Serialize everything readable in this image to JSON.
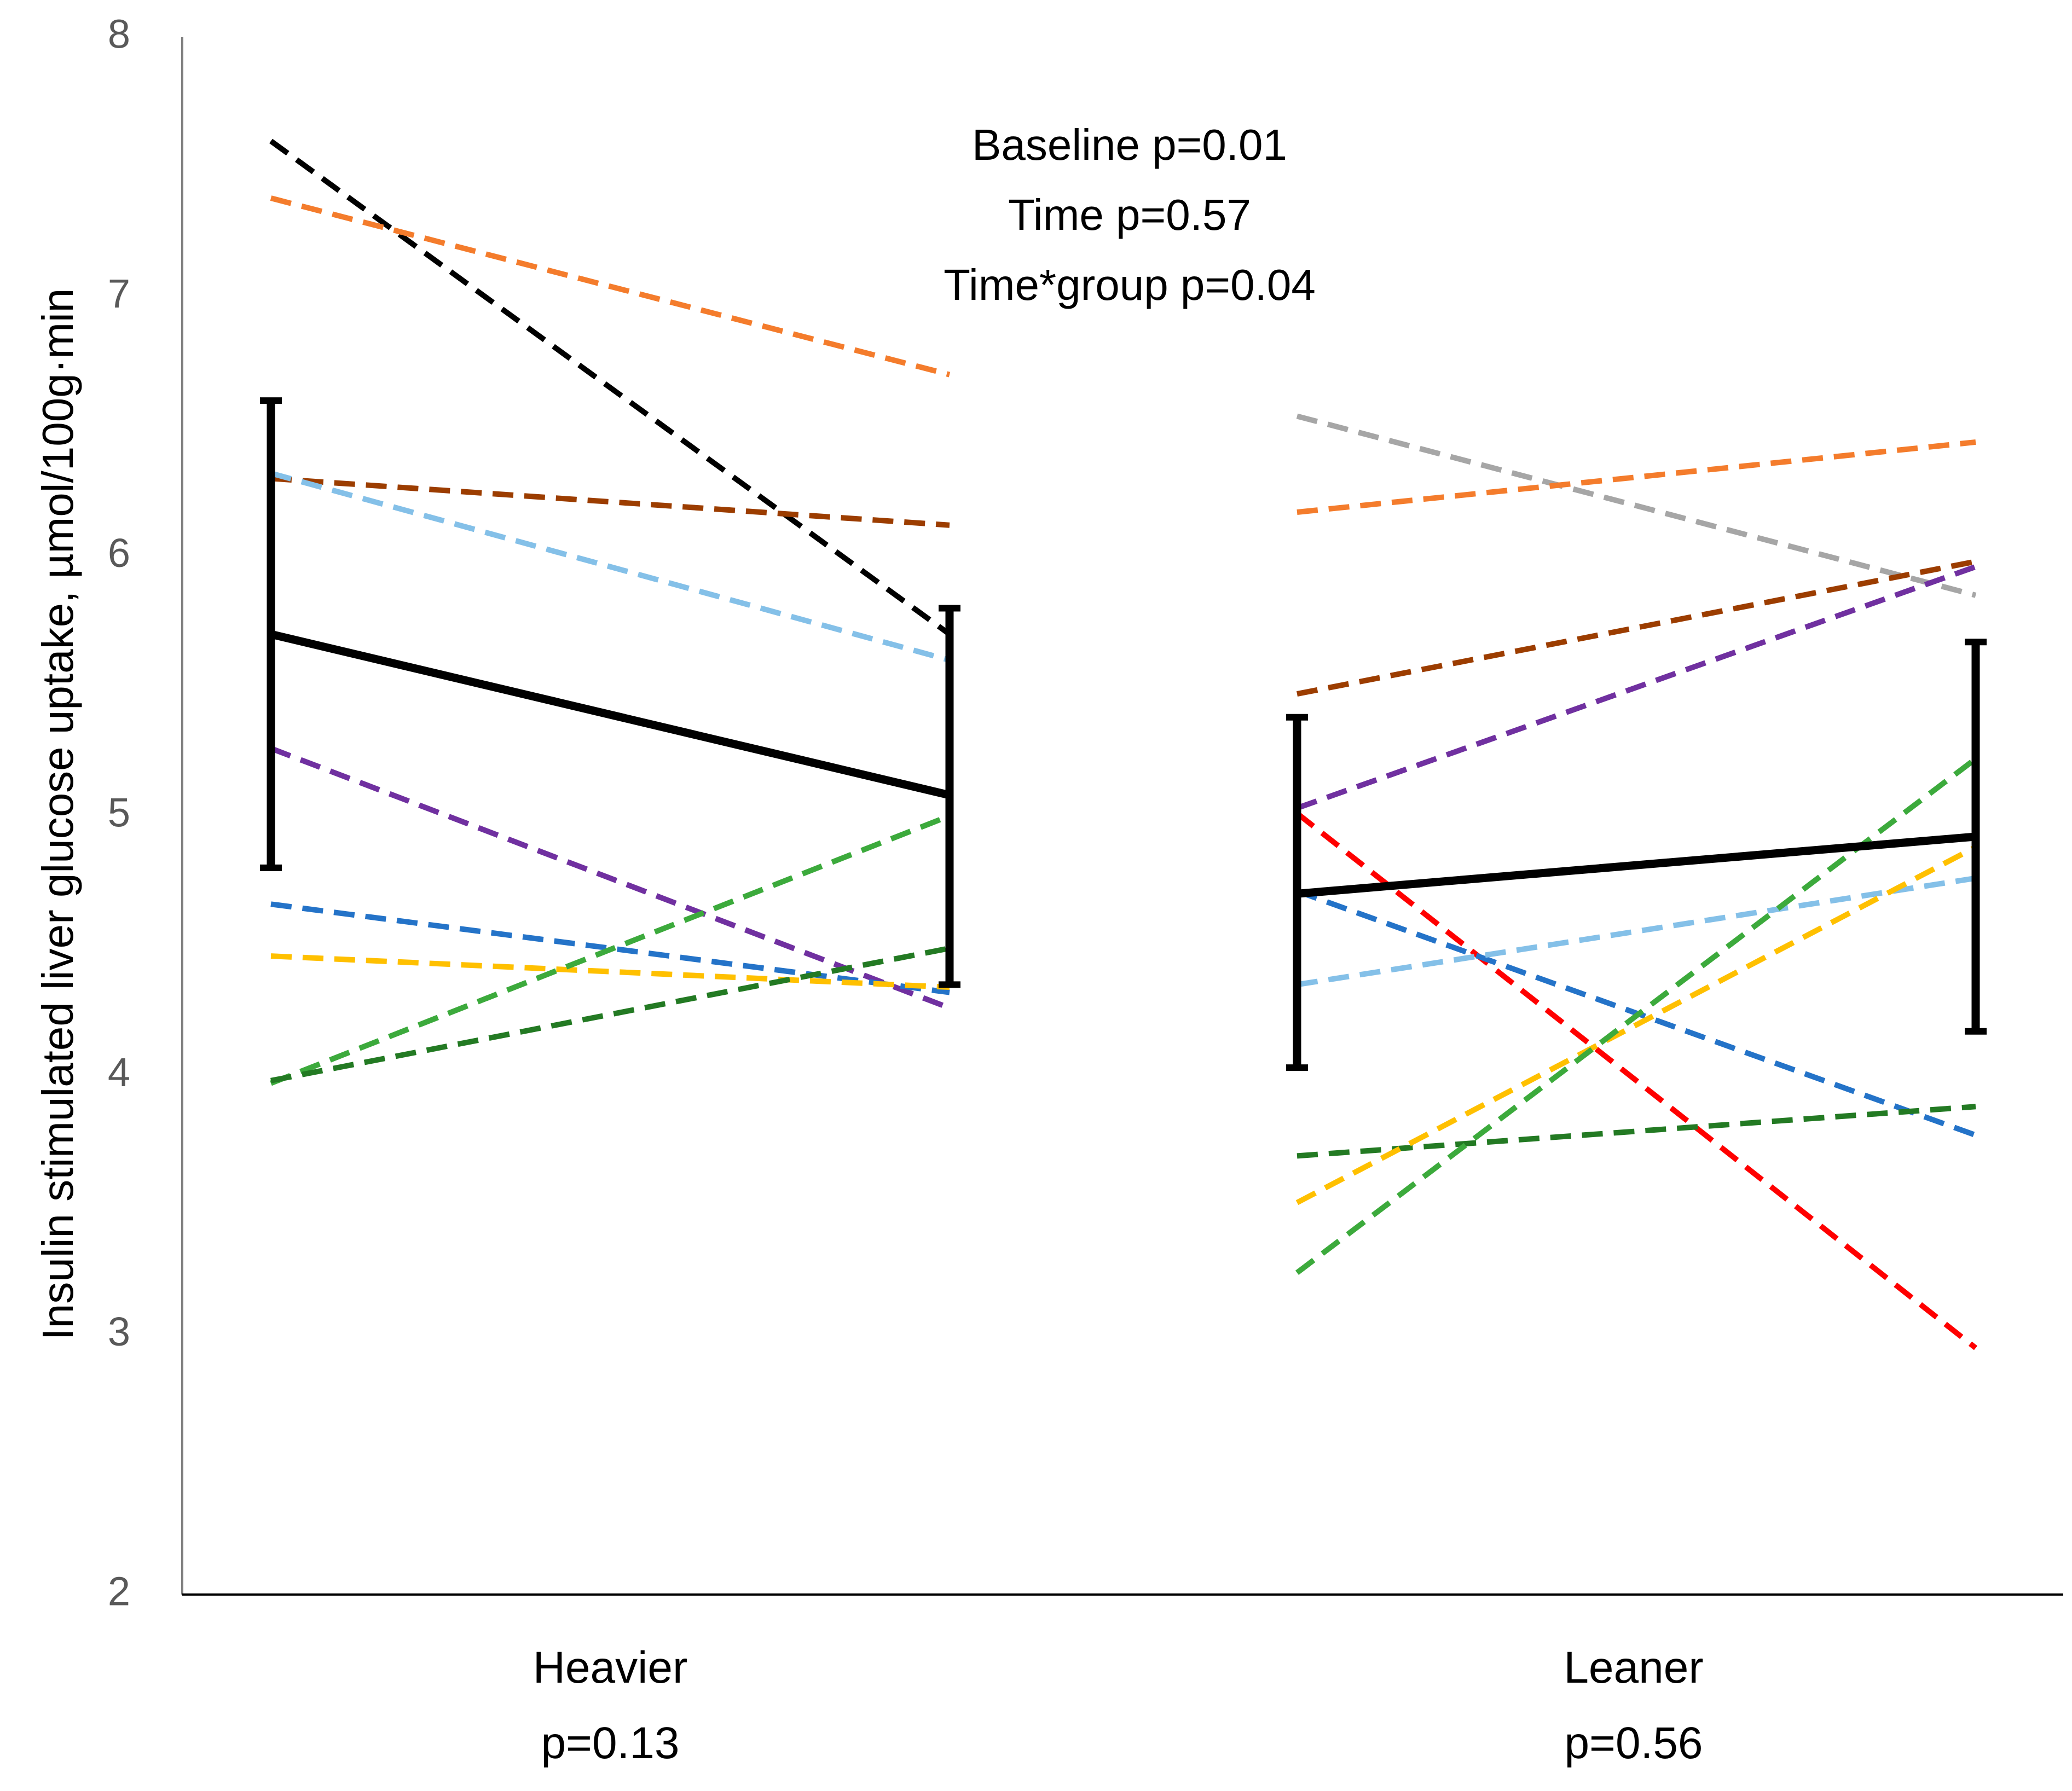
{
  "chart_data": {
    "type": "line",
    "title": "",
    "ylabel": "Insulin stimulated liver glucose uptake, µmol/100g·min",
    "ylim": [
      2,
      8
    ],
    "yticks": [
      2,
      3,
      4,
      5,
      6,
      7,
      8
    ],
    "grid": false,
    "legend": "none",
    "annotations": [
      "Baseline p=0.01",
      "Time p=0.57",
      "Time*group p=0.04"
    ],
    "groups": [
      {
        "label": "Heavier",
        "p_label": "p=0.13",
        "mean": {
          "values": [
            5.7,
            5.08
          ],
          "error_low": [
            4.8,
            4.35
          ],
          "error_high": [
            6.6,
            5.8
          ]
        },
        "individuals": [
          {
            "color": "#000000",
            "values": [
              7.6,
              5.7
            ]
          },
          {
            "color": "#F47C2C",
            "values": [
              7.38,
              6.7
            ]
          },
          {
            "color": "#9C3D00",
            "values": [
              6.3,
              6.12
            ]
          },
          {
            "color": "#84C0E8",
            "values": [
              6.32,
              5.6
            ]
          },
          {
            "color": "#7030A0",
            "values": [
              5.26,
              4.26
            ]
          },
          {
            "color": "#2473C8",
            "values": [
              4.66,
              4.32
            ]
          },
          {
            "color": "#FFC000",
            "values": [
              4.46,
              4.34
            ]
          },
          {
            "color": "#3CAA3C",
            "values": [
              3.97,
              5.0
            ]
          },
          {
            "color": "#237A23",
            "values": [
              3.98,
              4.49
            ]
          }
        ]
      },
      {
        "label": "Leaner",
        "p_label": "p=0.56",
        "mean": {
          "values": [
            4.7,
            4.92
          ],
          "error_low": [
            4.03,
            4.17
          ],
          "error_high": [
            5.38,
            5.67
          ]
        },
        "individuals": [
          {
            "color": "#A6A6A6",
            "values": [
              6.54,
              5.85
            ]
          },
          {
            "color": "#F47C2C",
            "values": [
              6.17,
              6.44
            ]
          },
          {
            "color": "#9C3D00",
            "values": [
              5.47,
              5.98
            ]
          },
          {
            "color": "#7030A0",
            "values": [
              5.03,
              5.96
            ]
          },
          {
            "color": "#FF0000",
            "values": [
              5.01,
              2.95
            ]
          },
          {
            "color": "#2473C8",
            "values": [
              4.71,
              3.77
            ]
          },
          {
            "color": "#84C0E8",
            "values": [
              4.35,
              4.76
            ]
          },
          {
            "color": "#237A23",
            "values": [
              3.69,
              3.88
            ]
          },
          {
            "color": "#FFC000",
            "values": [
              3.51,
              4.88
            ]
          },
          {
            "color": "#3CAA3C",
            "values": [
              3.24,
              5.22
            ]
          }
        ]
      }
    ]
  }
}
